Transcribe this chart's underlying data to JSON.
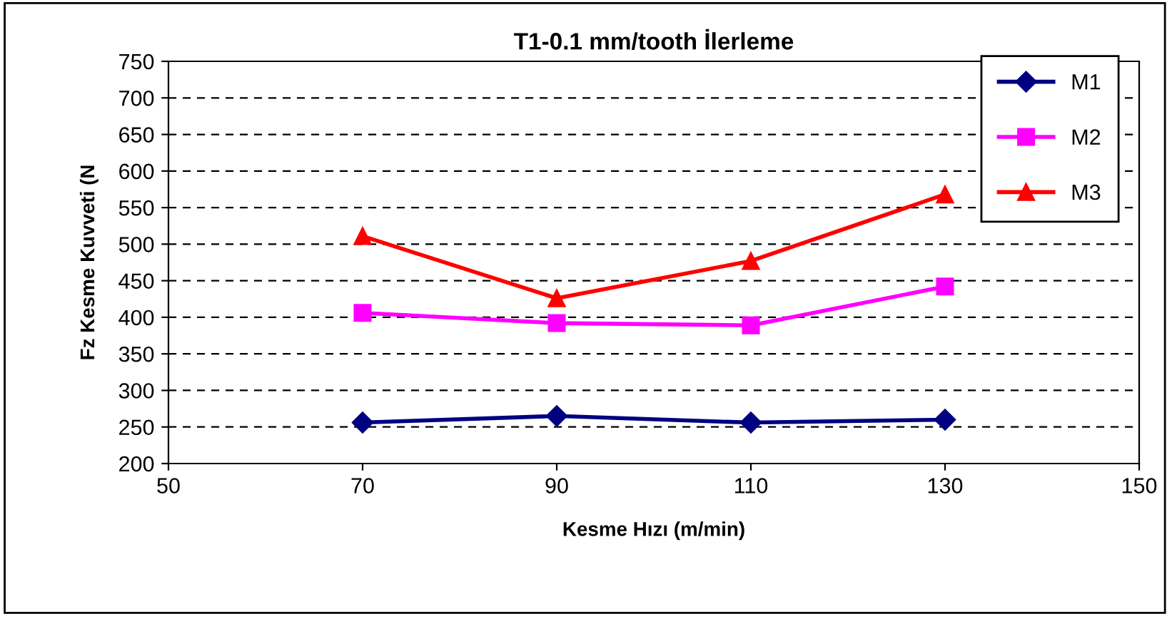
{
  "chart_data": {
    "type": "line",
    "title": "T1-0.1 mm/tooth İlerleme",
    "xlabel": "Kesme Hızı (m/min)",
    "ylabel": "Fz Kesme Kuvveti (N",
    "x": [
      70,
      90,
      110,
      130
    ],
    "series": [
      {
        "name": "M1",
        "color": "#000080",
        "marker": "diamond",
        "values": [
          256,
          265,
          256,
          260
        ]
      },
      {
        "name": "M2",
        "color": "#ff00ff",
        "marker": "square",
        "values": [
          406,
          392,
          389,
          442
        ]
      },
      {
        "name": "M3",
        "color": "#ff0000",
        "marker": "triangle",
        "values": [
          511,
          426,
          477,
          568
        ]
      }
    ],
    "xlim": [
      50,
      150
    ],
    "xticks": [
      50,
      70,
      90,
      110,
      130,
      150
    ],
    "ylim": [
      200,
      750
    ],
    "yticks": [
      200,
      250,
      300,
      350,
      400,
      450,
      500,
      550,
      600,
      650,
      700,
      750
    ],
    "grid": "y",
    "legend": "top right",
    "line_style": "solid"
  }
}
